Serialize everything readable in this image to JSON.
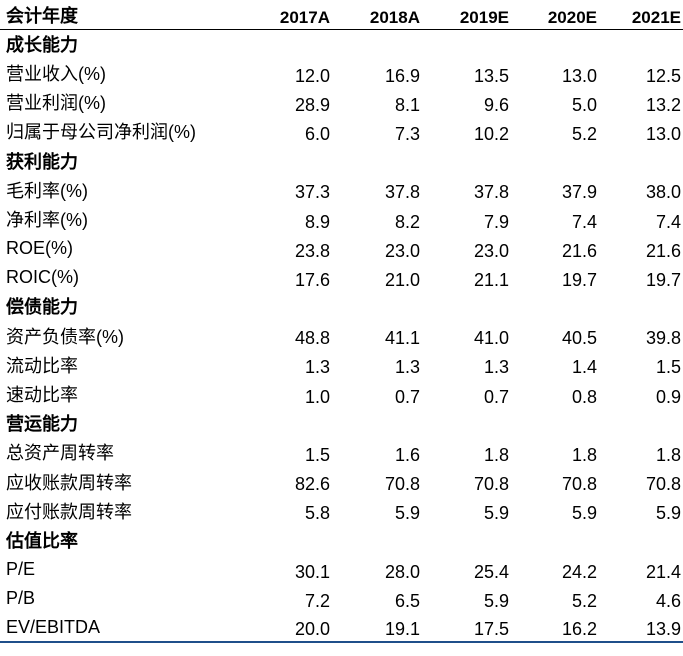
{
  "header": {
    "label": "会计年度",
    "years": [
      "2017A",
      "2018A",
      "2019E",
      "2020E",
      "2021E"
    ]
  },
  "sections": [
    {
      "title": "成长能力",
      "rows": [
        {
          "label": "营业收入(%)",
          "values": [
            "12.0",
            "16.9",
            "13.5",
            "13.0",
            "12.5"
          ]
        },
        {
          "label": "营业利润(%)",
          "values": [
            "28.9",
            "8.1",
            "9.6",
            "5.0",
            "13.2"
          ]
        },
        {
          "label": "归属于母公司净利润(%)",
          "values": [
            "6.0",
            "7.3",
            "10.2",
            "5.2",
            "13.0"
          ]
        }
      ]
    },
    {
      "title": "获利能力",
      "rows": [
        {
          "label": "毛利率(%)",
          "values": [
            "37.3",
            "37.8",
            "37.8",
            "37.9",
            "38.0"
          ]
        },
        {
          "label": "净利率(%)",
          "values": [
            "8.9",
            "8.2",
            "7.9",
            "7.4",
            "7.4"
          ]
        },
        {
          "label": "ROE(%)",
          "values": [
            "23.8",
            "23.0",
            "23.0",
            "21.6",
            "21.6"
          ]
        },
        {
          "label": "ROIC(%)",
          "values": [
            "17.6",
            "21.0",
            "21.1",
            "19.7",
            "19.7"
          ]
        }
      ]
    },
    {
      "title": "偿债能力",
      "rows": [
        {
          "label": "资产负债率(%)",
          "values": [
            "48.8",
            "41.1",
            "41.0",
            "40.5",
            "39.8"
          ]
        },
        {
          "label": "流动比率",
          "values": [
            "1.3",
            "1.3",
            "1.3",
            "1.4",
            "1.5"
          ]
        },
        {
          "label": "速动比率",
          "values": [
            "1.0",
            "0.7",
            "0.7",
            "0.8",
            "0.9"
          ]
        }
      ]
    },
    {
      "title": "营运能力",
      "rows": [
        {
          "label": "总资产周转率",
          "values": [
            "1.5",
            "1.6",
            "1.8",
            "1.8",
            "1.8"
          ]
        },
        {
          "label": "应收账款周转率",
          "values": [
            "82.6",
            "70.8",
            "70.8",
            "70.8",
            "70.8"
          ]
        },
        {
          "label": "应付账款周转率",
          "values": [
            "5.8",
            "5.9",
            "5.9",
            "5.9",
            "5.9"
          ]
        }
      ]
    },
    {
      "title": "估值比率",
      "rows": [
        {
          "label": "P/E",
          "values": [
            "30.1",
            "28.0",
            "25.4",
            "24.2",
            "21.4"
          ]
        },
        {
          "label": "P/B",
          "values": [
            "7.2",
            "6.5",
            "5.9",
            "5.2",
            "4.6"
          ]
        },
        {
          "label": "EV/EBITDA",
          "values": [
            "20.0",
            "19.1",
            "17.5",
            "16.2",
            "13.9"
          ]
        }
      ]
    }
  ]
}
